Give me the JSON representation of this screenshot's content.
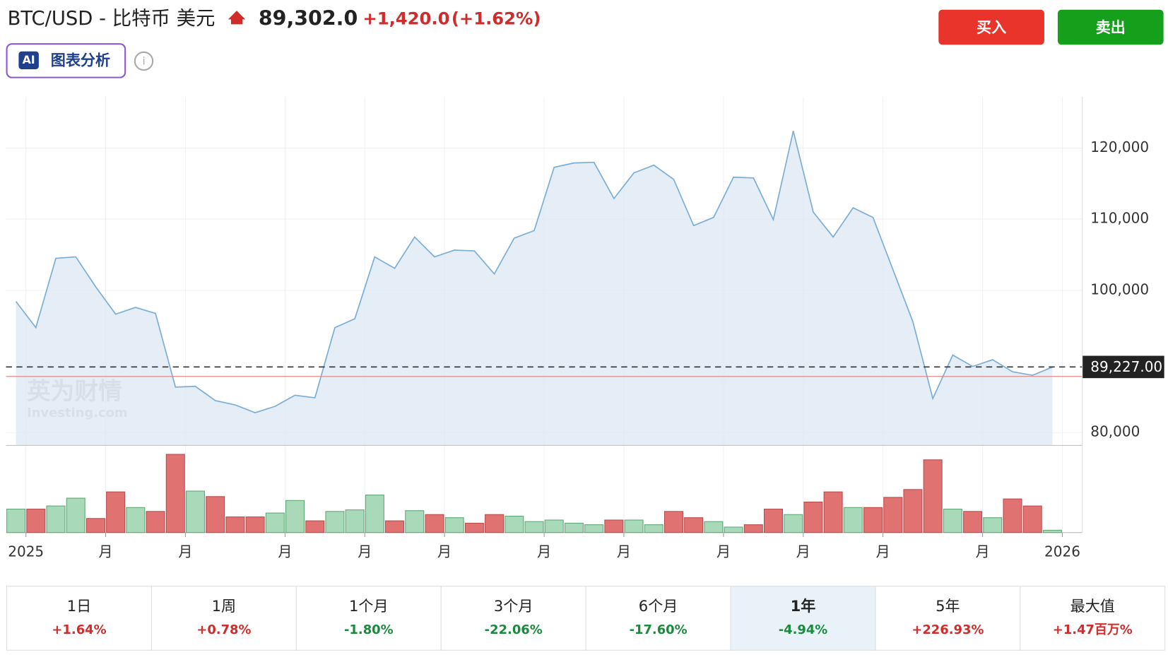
{
  "header": {
    "title": "BTC/USD - 比特币 美元",
    "price": "89,302.0",
    "change": "+1,420.0",
    "change_pct": "(+1.62%)",
    "ai_badge": "AI",
    "ai_label": "图表分析",
    "buy": "买入",
    "sell": "卖出"
  },
  "chart_data": {
    "type": "line",
    "series": [
      {
        "name": "BTC/USD",
        "color": "#7aaed6",
        "values": [
          98430,
          94760,
          104500,
          104700,
          100500,
          96650,
          97600,
          96750,
          86400,
          86500,
          84500,
          83900,
          82800,
          83700,
          85250,
          84900,
          94750,
          96000,
          104700,
          103100,
          107500,
          104700,
          105650,
          105550,
          102300,
          107350,
          108400,
          117300,
          117900,
          118000,
          112900,
          116500,
          117600,
          115600,
          109100,
          110250,
          115900,
          115800,
          109950,
          122400,
          111000,
          107500,
          111600,
          110250,
          102900,
          95600,
          84800,
          90900,
          89300,
          90250,
          88550,
          88050,
          89200
        ]
      }
    ],
    "volume": {
      "values": [
        30,
        30,
        34,
        44,
        18,
        52,
        32,
        27,
        100,
        53,
        46,
        20,
        20,
        25,
        41,
        15,
        27,
        29,
        48,
        15,
        28,
        23,
        19,
        12,
        23,
        21,
        14,
        16,
        12,
        10,
        16,
        16,
        10,
        27,
        19,
        14,
        7,
        10,
        30,
        23,
        39,
        52,
        32,
        32,
        45,
        55,
        93,
        30,
        27,
        19,
        43,
        34,
        3
      ],
      "colors": [
        "#a8d9b8",
        "#e07272",
        "#a8d9b8",
        "#a8d9b8",
        "#e07272",
        "#e07272",
        "#a8d9b8",
        "#e07272",
        "#e07272",
        "#a8d9b8",
        "#e07272",
        "#e07272",
        "#e07272",
        "#a8d9b8",
        "#a8d9b8",
        "#e07272",
        "#a8d9b8",
        "#a8d9b8",
        "#a8d9b8",
        "#e07272",
        "#a8d9b8",
        "#e07272",
        "#a8d9b8",
        "#e07272",
        "#e07272",
        "#a8d9b8",
        "#a8d9b8",
        "#a8d9b8",
        "#a8d9b8",
        "#a8d9b8",
        "#e07272",
        "#a8d9b8",
        "#a8d9b8",
        "#e07272",
        "#e07272",
        "#a8d9b8",
        "#a8d9b8",
        "#e07272",
        "#e07272",
        "#a8d9b8",
        "#e07272",
        "#e07272",
        "#a8d9b8",
        "#e07272",
        "#e07272",
        "#e07272",
        "#e07272",
        "#a8d9b8",
        "#e07272",
        "#a8d9b8",
        "#e07272",
        "#e07272",
        "#a8d9b8"
      ]
    },
    "xlim": [
      -0.5,
      53.5
    ],
    "xticks": [
      {
        "value": 0.5,
        "label": "2025"
      },
      {
        "value": 4.5,
        "label": "月"
      },
      {
        "value": 8.5,
        "label": "月"
      },
      {
        "value": 13.5,
        "label": "月"
      },
      {
        "value": 17.5,
        "label": "月"
      },
      {
        "value": 21.5,
        "label": "月"
      },
      {
        "value": 26.5,
        "label": "月"
      },
      {
        "value": 30.5,
        "label": "月"
      },
      {
        "value": 35.5,
        "label": "月"
      },
      {
        "value": 39.5,
        "label": "月"
      },
      {
        "value": 43.5,
        "label": "月"
      },
      {
        "value": 48.5,
        "label": "月"
      },
      {
        "value": 52.5,
        "label": "2026"
      }
    ],
    "ylim": [
      78200,
      127200
    ],
    "yticks": [
      {
        "value": 80000,
        "label": "80,000"
      },
      {
        "value": 100000,
        "label": "100,000"
      },
      {
        "value": 110000,
        "label": "110,000"
      },
      {
        "value": 120000,
        "label": "120,000"
      }
    ],
    "last_price": {
      "value": 89227,
      "label": "89,227.00"
    },
    "baseline": 87900,
    "grid": true,
    "watermark": [
      "英为财情",
      "Investing.com"
    ]
  },
  "periods": {
    "selected": 5,
    "items": [
      {
        "label": "1日",
        "change": "+1.64%",
        "color": "#d12b2b"
      },
      {
        "label": "1周",
        "change": "+0.78%",
        "color": "#d12b2b"
      },
      {
        "label": "1个月",
        "change": "-1.80%",
        "color": "#1a8a3c"
      },
      {
        "label": "3个月",
        "change": "-22.06%",
        "color": "#1a8a3c"
      },
      {
        "label": "6个月",
        "change": "-17.60%",
        "color": "#1a8a3c"
      },
      {
        "label": "1年",
        "change": "-4.94%",
        "color": "#1a8a3c"
      },
      {
        "label": "5年",
        "change": "+226.93%",
        "color": "#d12b2b"
      },
      {
        "label": "最大值",
        "change": "+1.47百万%",
        "color": "#d12b2b"
      }
    ]
  }
}
